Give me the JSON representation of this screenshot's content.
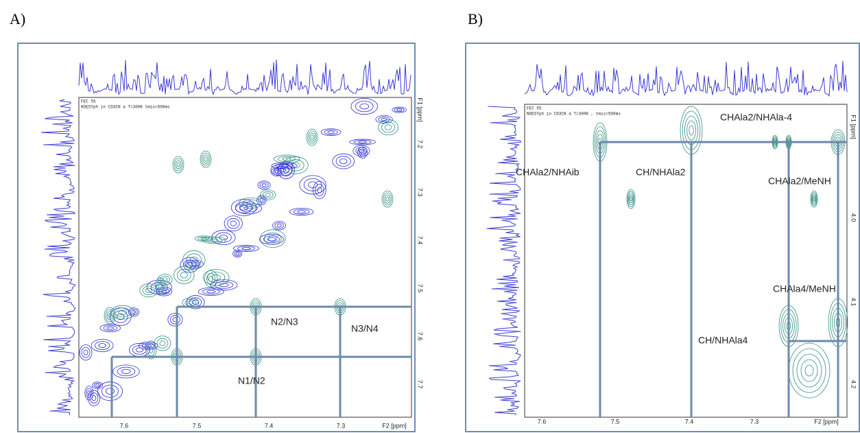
{
  "panels": [
    {
      "label": "A)",
      "header": [
        "FEC 55",
        "NOESYph in CD3CN a T=300K  tmix=500ms"
      ],
      "x_axis": {
        "title": "F2 [ppm]",
        "ticks": [
          "7.6",
          "7.5",
          "7.4",
          "7.3"
        ]
      },
      "y_axis": {
        "title": "F1 [ppm]",
        "ticks": [
          "7.2",
          "7.3",
          "7.4",
          "7.5",
          "7.6",
          "7.7"
        ]
      },
      "annotations": [
        "N2/N3",
        "N3/N4",
        "N1/N2"
      ]
    },
    {
      "label": "B)",
      "header": [
        "FEC 55",
        "NOESYph in CD3CN a T=300K , tmix=500ms"
      ],
      "x_axis": {
        "title": "F2 [ppm]",
        "ticks": [
          "7.6",
          "7.5",
          "7.4",
          "7.3"
        ]
      },
      "y_axis": {
        "title": "F1 [ppm]",
        "ticks": [
          "4.0",
          "4.1",
          "4.2"
        ]
      },
      "annotations": [
        "CHAla2/NHAla-4",
        "CHAla2/NHAib",
        "CH/NHAla2",
        "CHAla2/MeNH",
        "CHAla4/MeNH",
        "CH/NHAla4"
      ]
    }
  ]
}
